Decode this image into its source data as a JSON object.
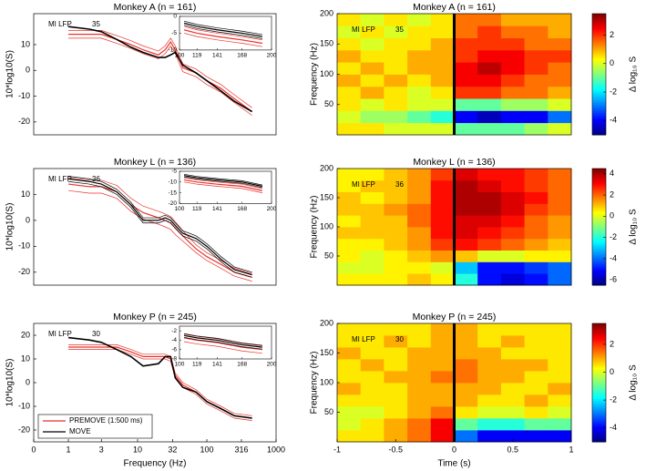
{
  "chart_data": [
    {
      "type": "line",
      "title": "Monkey A (n = 161)",
      "ylabel": "10*log10(S)",
      "xscale": "log",
      "xlim": [
        0.316,
        1000
      ],
      "ylim": [
        -25,
        22
      ],
      "yticks": [
        -20,
        -10,
        0,
        10
      ],
      "annotations": [
        "MI LFP",
        "35"
      ],
      "x": [
        1,
        2,
        3,
        5,
        8,
        12,
        20,
        25,
        30,
        35,
        45,
        70,
        100,
        160,
        250,
        450
      ],
      "series": [
        {
          "color": "#e8322c",
          "values": [
            14,
            14,
            14,
            12,
            10,
            8,
            6,
            8,
            11,
            8,
            1,
            -1,
            -4,
            -7,
            -11,
            -16
          ],
          "lower": [
            12.5,
            12.5,
            12.5,
            10.5,
            8.5,
            6.5,
            4.5,
            6.5,
            9.5,
            6.5,
            -0.5,
            -2.5,
            -5.5,
            -8.5,
            -12.5,
            -17.5
          ],
          "upper": [
            15.5,
            15.5,
            15.5,
            13.5,
            11.5,
            9.5,
            7.5,
            9.5,
            12.5,
            9.5,
            2.5,
            0.5,
            -2.5,
            -5.5,
            -9.5,
            -14.5
          ]
        },
        {
          "color": "#000000",
          "values": [
            17,
            16,
            15,
            12,
            9,
            7,
            5,
            5,
            6,
            7,
            2,
            -1,
            -4,
            -8,
            -12,
            -16
          ]
        }
      ],
      "inset": {
        "xlim": [
          100,
          200
        ],
        "xticks": [
          100,
          119,
          141,
          168,
          200
        ],
        "ylim": [
          -10,
          0
        ],
        "yticks": [
          -10,
          -5,
          0
        ],
        "x": [
          105,
          119,
          141,
          168,
          190
        ],
        "series": [
          {
            "color": "#e8322c",
            "values": [
              -4,
              -5,
              -6,
              -7,
              -8
            ],
            "lower": [
              -5,
              -6,
              -7,
              -8,
              -9
            ],
            "upper": [
              -3,
              -4,
              -5,
              -6,
              -7
            ]
          },
          {
            "color": "#000000",
            "values": [
              -2,
              -3,
              -4,
              -5,
              -6
            ],
            "lower": [
              -2.6,
              -3.6,
              -4.6,
              -5.6,
              -6.6
            ],
            "upper": [
              -1.4,
              -2.4,
              -3.4,
              -4.4,
              -5.4
            ]
          }
        ]
      }
    },
    {
      "type": "heatmap",
      "title": "Monkey A (n = 161)",
      "ylabel": "Frequency (Hz)",
      "annotations": [
        "MI LFP",
        "35"
      ],
      "xlim": [
        -1,
        1
      ],
      "ylim": [
        0,
        200
      ],
      "yticks": [
        50,
        100,
        150,
        200
      ],
      "event_line": 0,
      "x": [
        -1,
        -0.8,
        -0.6,
        -0.4,
        -0.2,
        0,
        0.2,
        0.4,
        0.6,
        0.8,
        1
      ],
      "y": [
        0,
        20,
        40,
        60,
        80,
        100,
        120,
        140,
        160,
        180,
        200
      ],
      "z": [
        [
          0.5,
          0.5,
          0,
          0,
          0,
          -1,
          -1,
          -1,
          -0.5,
          0
        ],
        [
          0,
          -0.5,
          -0.5,
          -1,
          -1.5,
          -4,
          -4.5,
          -4,
          -4,
          -3
        ],
        [
          0.5,
          0,
          0.5,
          0,
          0,
          -1,
          -1,
          -0.5,
          -0.5,
          0
        ],
        [
          0.5,
          1,
          0.5,
          0,
          0.5,
          2,
          2,
          1.5,
          1.5,
          1
        ],
        [
          1,
          0.5,
          1,
          0.5,
          1,
          2.5,
          2.5,
          2,
          1.5,
          1.5
        ],
        [
          0.5,
          1,
          0.5,
          1,
          1,
          2.5,
          3,
          2.5,
          2,
          1.5
        ],
        [
          1,
          0.5,
          0.5,
          1,
          1,
          2,
          2.5,
          2.5,
          2,
          2
        ],
        [
          0.5,
          0,
          0.5,
          0.5,
          1,
          2,
          2,
          2,
          1.5,
          1.5
        ],
        [
          0,
          0.5,
          0,
          0.5,
          0.5,
          1.5,
          2,
          1.5,
          1.5,
          1
        ],
        [
          0.5,
          0,
          0.5,
          0,
          0.5,
          1.5,
          1.5,
          1,
          1,
          1
        ]
      ],
      "clim": [
        -5,
        3.5
      ],
      "cticks": [
        -4,
        -2,
        0,
        2
      ],
      "colorbar_label": "Δ log₁₀ S"
    },
    {
      "type": "line",
      "title": "Monkey L (n = 136)",
      "ylabel": "10*log10(S)",
      "xscale": "log",
      "xlim": [
        0.316,
        1000
      ],
      "ylim": [
        -25,
        20
      ],
      "yticks": [
        -20,
        -10,
        0,
        10
      ],
      "annotations": [
        "MI LFP",
        "36"
      ],
      "x": [
        1,
        2,
        3,
        5,
        8,
        12,
        20,
        25,
        30,
        35,
        45,
        70,
        100,
        160,
        250,
        450
      ],
      "series": [
        {
          "color": "#e8322c",
          "values": [
            14,
            13,
            13,
            11,
            6,
            3,
            1,
            0,
            -1,
            -3,
            -6,
            -11,
            -14,
            -17,
            -20,
            -22
          ],
          "lower": [
            11.5,
            10.5,
            10.5,
            8.5,
            3.5,
            0.5,
            -1.5,
            -2.5,
            -3.5,
            -5.5,
            -8,
            -12.5,
            -15.5,
            -18.5,
            -21.5,
            -23.5
          ],
          "upper": [
            16.5,
            15.5,
            15.5,
            13.5,
            8.5,
            5.5,
            3.5,
            2.5,
            1.5,
            -0.5,
            -4,
            -9.5,
            -12.5,
            -15.5,
            -18.5,
            -20.5
          ]
        },
        {
          "color": "#000000",
          "values": [
            16,
            15,
            14,
            11,
            6,
            0,
            0,
            1,
            0,
            -2,
            -5,
            -7,
            -10,
            -15,
            -19,
            -21
          ],
          "lower": [
            15,
            14,
            13,
            10,
            5,
            -1,
            -1,
            0,
            -1,
            -3,
            -6,
            -8,
            -11,
            -16,
            -20,
            -22
          ],
          "upper": [
            17,
            16,
            15,
            12,
            7,
            1,
            1,
            2,
            1,
            -1,
            -4,
            -6,
            -9,
            -14,
            -18,
            -20
          ]
        }
      ],
      "inset": {
        "xlim": [
          100,
          200
        ],
        "xticks": [
          100,
          119,
          141,
          168,
          200
        ],
        "ylim": [
          -20,
          -5
        ],
        "yticks": [
          -20,
          -15,
          -10,
          -5
        ],
        "x": [
          105,
          119,
          141,
          168,
          190
        ],
        "series": [
          {
            "color": "#e8322c",
            "values": [
              -9,
              -10,
              -11,
              -12,
              -14
            ],
            "lower": [
              -10,
              -11,
              -12,
              -13,
              -15
            ],
            "upper": [
              -8,
              -9,
              -10,
              -11,
              -13
            ]
          },
          {
            "color": "#000000",
            "values": [
              -7,
              -8,
              -9,
              -10,
              -12
            ],
            "lower": [
              -7.6,
              -8.6,
              -9.6,
              -10.6,
              -12.6
            ],
            "upper": [
              -6.4,
              -7.4,
              -8.4,
              -9.4,
              -11.4
            ]
          }
        ]
      }
    },
    {
      "type": "heatmap",
      "title": "Monkey L (n = 136)",
      "ylabel": "Frequency (Hz)",
      "annotations": [
        "MI LFP",
        "36"
      ],
      "xlim": [
        -1,
        1
      ],
      "ylim": [
        0,
        200
      ],
      "yticks": [
        50,
        100,
        150,
        200
      ],
      "event_line": 0,
      "x": [
        -1,
        -0.8,
        -0.6,
        -0.4,
        -0.2,
        0,
        0.2,
        0.4,
        0.6,
        0.8,
        1
      ],
      "y": [
        0,
        20,
        40,
        60,
        80,
        100,
        120,
        140,
        160,
        180,
        200
      ],
      "z": [
        [
          0.5,
          0.5,
          0.5,
          1,
          0.5,
          -2,
          -5,
          -5.5,
          -5,
          -4
        ],
        [
          0,
          0,
          0.5,
          0.5,
          0,
          -3,
          -5,
          -5,
          -4.5,
          -4
        ],
        [
          0.5,
          0,
          0.5,
          1,
          1.5,
          1,
          0,
          0,
          0.5,
          0.5
        ],
        [
          0.5,
          0.5,
          1,
          1.5,
          2.5,
          3,
          2.5,
          2,
          1.5,
          1
        ],
        [
          1,
          1,
          1,
          1.5,
          3,
          3.5,
          3,
          2.5,
          2,
          1.5
        ],
        [
          0.5,
          1,
          1,
          2,
          3,
          3.5,
          3.5,
          3,
          2,
          1.5
        ],
        [
          1,
          1,
          1.5,
          2,
          3,
          4,
          4,
          3.5,
          2.5,
          2
        ],
        [
          1,
          0.5,
          1,
          1.5,
          3,
          4,
          4,
          3.5,
          3,
          2
        ],
        [
          0.5,
          1,
          1,
          1.5,
          3,
          4,
          3.5,
          3,
          2.5,
          2
        ],
        [
          0.5,
          0.5,
          1,
          1.5,
          2.5,
          3.5,
          3,
          3,
          2.5,
          2
        ]
      ],
      "clim": [
        -6.5,
        4.5
      ],
      "cticks": [
        -6,
        -4,
        -2,
        0,
        2,
        4
      ],
      "colorbar_label": "Δ log₁₀ S"
    },
    {
      "type": "line",
      "title": "Monkey P (n = 245)",
      "ylabel": "10*log10(S)",
      "xlabel": "Frequency (Hz)",
      "xscale": "log",
      "xlim": [
        0.316,
        1000
      ],
      "ylim": [
        -25,
        25
      ],
      "yticks": [
        -20,
        -10,
        0,
        10,
        20
      ],
      "xticks": [
        {
          "value": 0.316,
          "label": "0"
        },
        1,
        3,
        10,
        32,
        100,
        316,
        1000
      ],
      "annotations": [
        "MI LFP",
        "30"
      ],
      "legend": "lower left",
      "x": [
        1,
        2,
        3,
        5,
        8,
        12,
        20,
        25,
        30,
        35,
        45,
        70,
        100,
        160,
        250,
        450
      ],
      "series": [
        {
          "name": "PREMOVE (1:500 ms)",
          "color": "#e8322c",
          "values": [
            15,
            15,
            15,
            15,
            13,
            11,
            11,
            11,
            10,
            3,
            -1,
            -4,
            -8,
            -11,
            -14,
            -15
          ],
          "lower": [
            14,
            14,
            14,
            14,
            12,
            10,
            10,
            10,
            9,
            2,
            -2,
            -5,
            -9,
            -12,
            -15,
            -16
          ],
          "upper": [
            16,
            16,
            16,
            16,
            14,
            12,
            12,
            12,
            11,
            4,
            0,
            -3,
            -7,
            -10,
            -13,
            -14
          ]
        },
        {
          "name": "MOVE",
          "color": "#000000",
          "values": [
            19,
            18,
            17,
            14,
            11,
            7,
            8,
            11,
            11,
            2,
            -2,
            -4,
            -8,
            -11,
            -14,
            -15
          ]
        }
      ],
      "inset": {
        "xlim": [
          100,
          200
        ],
        "xticks": [
          100,
          119,
          141,
          168,
          200
        ],
        "ylim": [
          -8,
          -1
        ],
        "yticks": [
          -8,
          -6,
          -4,
          -2
        ],
        "x": [
          105,
          119,
          141,
          168,
          190
        ],
        "series": [
          {
            "color": "#e8322c",
            "values": [
              -3.5,
              -4,
              -4.5,
              -5.5,
              -6
            ],
            "lower": [
              -4.3,
              -4.8,
              -5.3,
              -6.3,
              -6.8
            ],
            "upper": [
              -2.7,
              -3.2,
              -3.7,
              -4.7,
              -5.2
            ]
          },
          {
            "color": "#000000",
            "values": [
              -3,
              -3.5,
              -4,
              -5,
              -5.5
            ],
            "lower": [
              -3.4,
              -3.9,
              -4.4,
              -5.4,
              -5.9
            ],
            "upper": [
              -2.6,
              -3.1,
              -3.6,
              -4.6,
              -5.1
            ]
          }
        ]
      }
    },
    {
      "type": "heatmap",
      "title": "Monkey P (n = 245)",
      "ylabel": "Frequency (Hz)",
      "xlabel": "Time (s)",
      "annotations": [
        "MI LFP",
        "30"
      ],
      "xlim": [
        -1,
        1
      ],
      "ylim": [
        0,
        200
      ],
      "xticks": [
        -1,
        -0.5,
        0,
        0.5,
        1
      ],
      "yticks": [
        50,
        100,
        150,
        200
      ],
      "event_line": 0,
      "x": [
        -1,
        -0.8,
        -0.6,
        -0.4,
        -0.2,
        0,
        0.2,
        0.4,
        0.6,
        0.8,
        1
      ],
      "y": [
        0,
        20,
        40,
        60,
        80,
        100,
        120,
        140,
        160,
        180,
        200
      ],
      "z": [
        [
          0.5,
          0.5,
          1,
          1.5,
          2.5,
          -3,
          -4,
          -4,
          -4,
          -4
        ],
        [
          0,
          0.5,
          1,
          1.5,
          2.5,
          -1,
          -1.5,
          -1.5,
          -1,
          -1
        ],
        [
          0,
          0,
          0.5,
          1,
          1.5,
          0.5,
          0,
          0,
          0.5,
          0
        ],
        [
          0.5,
          0.5,
          0.5,
          1,
          1,
          1,
          0.5,
          0.5,
          1,
          0.5
        ],
        [
          1,
          0.5,
          0.5,
          1,
          1,
          1,
          1,
          0.5,
          0.5,
          1
        ],
        [
          0.5,
          0.5,
          1,
          1,
          1.5,
          1.5,
          1,
          1,
          0.5,
          0.5
        ],
        [
          0.5,
          1,
          0.5,
          1,
          1,
          1.5,
          1,
          1,
          1,
          0.5
        ],
        [
          1,
          0.5,
          0.5,
          1,
          1,
          1,
          1,
          0.5,
          0.5,
          0.5
        ],
        [
          0.5,
          0.5,
          1,
          0.5,
          1,
          1,
          0.5,
          1,
          0.5,
          0.5
        ],
        [
          0.5,
          0.5,
          0.5,
          0.5,
          1,
          1,
          0.5,
          0.5,
          0.5,
          0.5
        ]
      ],
      "clim": [
        -5,
        3.5
      ],
      "cticks": [
        -4,
        -2,
        0,
        2
      ],
      "colorbar_label": "Δ log₁₀ S"
    }
  ]
}
